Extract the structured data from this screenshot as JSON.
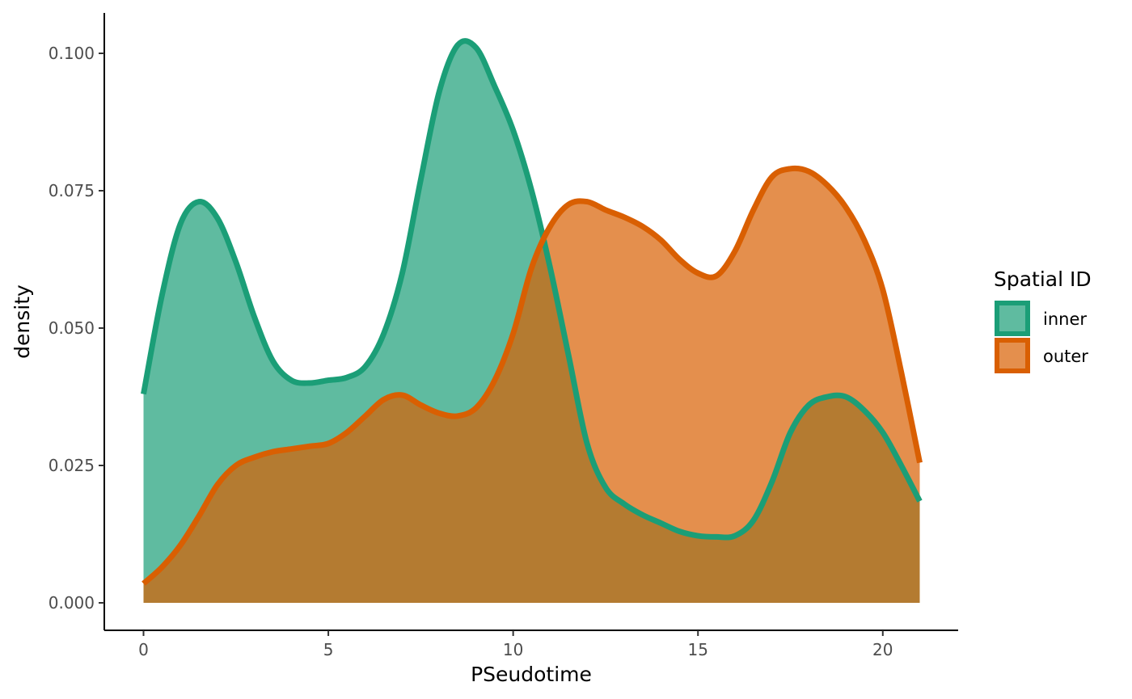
{
  "chart_data": {
    "type": "area",
    "xlabel": "PSeudotime",
    "ylabel": "density",
    "xlim": [
      0,
      21
    ],
    "ylim": [
      0,
      0.1
    ],
    "x_ticks": [
      {
        "value": 0,
        "label": "0"
      },
      {
        "value": 5,
        "label": "5"
      },
      {
        "value": 10,
        "label": "10"
      },
      {
        "value": 15,
        "label": "15"
      },
      {
        "value": 20,
        "label": "20"
      }
    ],
    "y_ticks": [
      {
        "value": 0.0,
        "label": "0.000"
      },
      {
        "value": 0.025,
        "label": "0.025"
      },
      {
        "value": 0.05,
        "label": "0.050"
      },
      {
        "value": 0.075,
        "label": "0.075"
      },
      {
        "value": 0.1,
        "label": "0.100"
      }
    ],
    "grid": false,
    "legend": {
      "title": "Spatial ID",
      "position": "right"
    },
    "series": [
      {
        "name": "inner",
        "line_color": "#1B9E77",
        "fill_color": "#1B9E77",
        "fill_opacity": 0.7,
        "x": [
          0,
          0.5,
          1,
          1.5,
          2,
          2.5,
          3,
          3.5,
          4,
          4.5,
          5,
          5.5,
          6,
          6.5,
          7,
          7.5,
          8,
          8.5,
          9,
          9.5,
          10,
          10.5,
          11,
          11.5,
          12,
          12.5,
          13,
          13.5,
          14,
          14.5,
          15,
          15.5,
          16,
          16.5,
          17,
          17.5,
          18,
          18.5,
          19,
          19.5,
          20,
          20.5,
          21
        ],
        "y": [
          0.038,
          0.056,
          0.069,
          0.073,
          0.07,
          0.062,
          0.052,
          0.044,
          0.0405,
          0.04,
          0.0405,
          0.041,
          0.043,
          0.049,
          0.06,
          0.077,
          0.093,
          0.1015,
          0.101,
          0.094,
          0.086,
          0.075,
          0.061,
          0.045,
          0.029,
          0.021,
          0.018,
          0.016,
          0.0145,
          0.013,
          0.0122,
          0.012,
          0.0122,
          0.015,
          0.022,
          0.031,
          0.036,
          0.0375,
          0.0375,
          0.035,
          0.031,
          0.025,
          0.0185
        ]
      },
      {
        "name": "outer",
        "line_color": "#D95F02",
        "fill_color": "#D95F02",
        "fill_opacity": 0.7,
        "x": [
          0,
          0.5,
          1,
          1.5,
          2,
          2.5,
          3,
          3.5,
          4,
          4.5,
          5,
          5.5,
          6,
          6.5,
          7,
          7.5,
          8,
          8.5,
          9,
          9.5,
          10,
          10.5,
          11,
          11.5,
          12,
          12.5,
          13,
          13.5,
          14,
          14.5,
          15,
          15.5,
          16,
          16.5,
          17,
          17.5,
          18,
          18.5,
          19,
          19.5,
          20,
          20.5,
          21
        ],
        "y": [
          0.0035,
          0.0065,
          0.0105,
          0.0158,
          0.0215,
          0.025,
          0.0265,
          0.0275,
          0.028,
          0.0285,
          0.029,
          0.031,
          0.034,
          0.037,
          0.0378,
          0.036,
          0.0345,
          0.034,
          0.0355,
          0.0405,
          0.049,
          0.061,
          0.0685,
          0.0725,
          0.073,
          0.0715,
          0.0702,
          0.0685,
          0.066,
          0.0625,
          0.06,
          0.0595,
          0.064,
          0.0715,
          0.0775,
          0.079,
          0.0785,
          0.076,
          0.072,
          0.066,
          0.057,
          0.042,
          0.0255
        ]
      }
    ]
  }
}
